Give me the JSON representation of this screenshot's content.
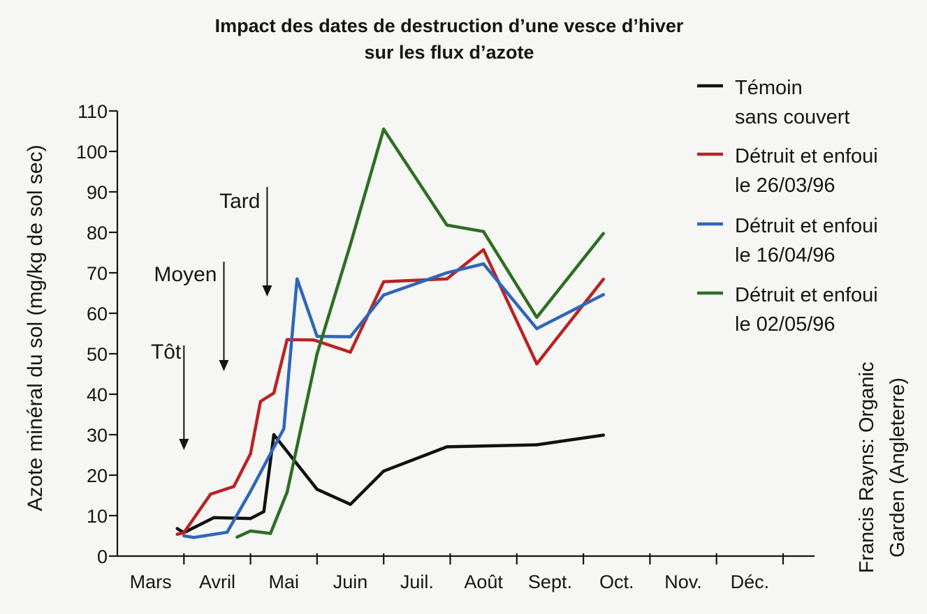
{
  "chart_data": {
    "type": "line",
    "title": "Impact des dates de destruction d’une vesce d’hiver",
    "subtitle": "sur les flux d’azote",
    "xlabel": "",
    "ylabel": "Azote minéral du sol (mg/kg de sol sec)",
    "ylim": [
      0,
      110
    ],
    "yticks": [
      "0",
      "10",
      "20",
      "30",
      "40",
      "50",
      "60",
      "70",
      "80",
      "90",
      "100",
      "110"
    ],
    "x_unit": "month index (0 = start of Mars)",
    "xlim": [
      0,
      10
    ],
    "categories": [
      "Mars",
      "Avril",
      "Mai",
      "Juin",
      "Juil.",
      "Août",
      "Sept.",
      "Oct.",
      "Nov.",
      "Déc."
    ],
    "legend_position": "right",
    "grid": false,
    "series": [
      {
        "name": "Témoin sans couvert",
        "legend": [
          "Témoin",
          "sans couvert"
        ],
        "color": "#111111",
        "x": [
          0.9,
          1.0,
          1.45,
          2.0,
          2.2,
          2.35,
          3.0,
          3.5,
          4.0,
          4.95,
          6.3,
          7.3
        ],
        "y": [
          6.8,
          5.8,
          9.5,
          9.3,
          11.0,
          30.0,
          16.5,
          12.8,
          21.0,
          27.0,
          27.5,
          29.9
        ]
      },
      {
        "name": "Détruit et enfoui le 26/03/96",
        "legend": [
          "Détruit et enfoui",
          "le 26/03/96"
        ],
        "color": "#b82424",
        "x": [
          0.9,
          1.0,
          1.4,
          1.75,
          2.0,
          2.15,
          2.35,
          2.55,
          2.95,
          3.5,
          4.0,
          4.95,
          5.5,
          6.3,
          7.3
        ],
        "y": [
          5.4,
          5.8,
          15.3,
          17.2,
          25.3,
          38.2,
          40.3,
          53.5,
          53.4,
          50.4,
          67.8,
          68.5,
          75.7,
          47.5,
          68.4
        ]
      },
      {
        "name": "Détruit et enfoui le 16/04/96",
        "legend": [
          "Détruit et enfoui",
          "le 16/04/96"
        ],
        "color": "#2f66b8",
        "x": [
          1.0,
          1.15,
          1.65,
          2.0,
          2.5,
          2.7,
          3.0,
          3.5,
          4.0,
          4.95,
          5.5,
          6.3,
          7.3
        ],
        "y": [
          5.0,
          4.6,
          5.9,
          16.0,
          31.5,
          68.5,
          54.3,
          54.2,
          64.5,
          70.0,
          72.2,
          56.2,
          64.6
        ]
      },
      {
        "name": "Détruit et enfoui le 02/05/96",
        "legend": [
          "Détruit et enfoui",
          "le 02/05/96"
        ],
        "color": "#2f6e24",
        "x": [
          1.8,
          2.0,
          2.3,
          2.55,
          3.0,
          3.5,
          4.0,
          4.95,
          5.5,
          6.3,
          7.3
        ],
        "y": [
          4.7,
          6.2,
          5.6,
          15.8,
          50.0,
          77.0,
          105.5,
          81.8,
          80.2,
          59.0,
          79.7
        ]
      }
    ],
    "annotations": [
      {
        "text": "Tôt",
        "arrow_x": 1.0
      },
      {
        "text": "Moyen",
        "arrow_x": 1.6
      },
      {
        "text": "Tard",
        "arrow_x": 2.25
      }
    ]
  },
  "credit": [
    "Francis Rayns: Organic",
    "Garden (Angleterre)"
  ]
}
